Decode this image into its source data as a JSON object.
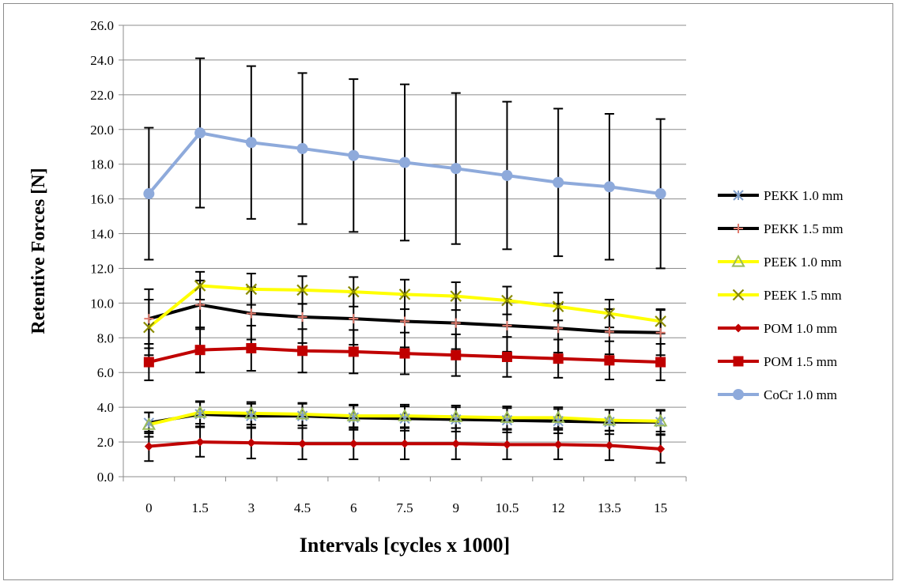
{
  "chart_data": {
    "type": "line",
    "title": "",
    "xlabel": "Intervals [cycles x 1000]",
    "ylabel": "Retentive Forces [N]",
    "categories": [
      "0",
      "1.5",
      "3",
      "4.5",
      "6",
      "7.5",
      "9",
      "10.5",
      "12",
      "13.5",
      "15"
    ],
    "yticks": [
      "0.0",
      "2.0",
      "4.0",
      "6.0",
      "8.0",
      "10.0",
      "12.0",
      "14.0",
      "16.0",
      "18.0",
      "20.0",
      "22.0",
      "24.0",
      "26.0"
    ],
    "ylim": [
      0,
      26
    ],
    "grid": "horizontal",
    "legend_position": "right",
    "series": [
      {
        "name": "PEKK 1.0 mm",
        "line_color": "#000000",
        "marker": "asterisk",
        "marker_color": "#7f9ec9",
        "values": [
          3.1,
          3.6,
          3.5,
          3.5,
          3.4,
          3.35,
          3.3,
          3.25,
          3.2,
          3.15,
          3.15
        ],
        "errors": [
          0.6,
          0.7,
          0.7,
          0.7,
          0.7,
          0.7,
          0.7,
          0.7,
          0.7,
          0.7,
          0.7
        ]
      },
      {
        "name": "PEKK 1.5 mm",
        "line_color": "#000000",
        "marker": "plus",
        "marker_color": "#e07b6e",
        "values": [
          9.1,
          9.9,
          9.4,
          9.2,
          9.1,
          8.95,
          8.85,
          8.7,
          8.55,
          8.35,
          8.3
        ],
        "errors": [
          1.7,
          1.4,
          1.5,
          1.5,
          1.5,
          1.5,
          1.5,
          1.5,
          1.4,
          1.3,
          1.3
        ]
      },
      {
        "name": "PEEK 1.0 mm",
        "line_color": "#ffff00",
        "marker": "triangle",
        "marker_color": "#9bbb59",
        "values": [
          3.0,
          3.7,
          3.65,
          3.6,
          3.5,
          3.5,
          3.45,
          3.4,
          3.4,
          3.25,
          3.2
        ],
        "errors": [
          0.7,
          0.65,
          0.65,
          0.65,
          0.65,
          0.65,
          0.65,
          0.65,
          0.6,
          0.6,
          0.6
        ]
      },
      {
        "name": "PEEK 1.5 mm",
        "line_color": "#ffff00",
        "marker": "x",
        "marker_color": "#8a8a00",
        "values": [
          8.6,
          11.0,
          10.8,
          10.75,
          10.65,
          10.5,
          10.4,
          10.15,
          9.8,
          9.4,
          8.95
        ],
        "errors": [
          1.6,
          0.8,
          0.9,
          0.8,
          0.85,
          0.85,
          0.8,
          0.8,
          0.8,
          0.8,
          0.7
        ]
      },
      {
        "name": "POM 1.0 mm",
        "line_color": "#c00000",
        "marker": "diamond",
        "marker_color": "#c00000",
        "values": [
          1.75,
          2.0,
          1.95,
          1.9,
          1.9,
          1.9,
          1.9,
          1.85,
          1.85,
          1.8,
          1.6
        ],
        "errors": [
          0.85,
          0.85,
          0.9,
          0.9,
          0.9,
          0.9,
          0.9,
          0.85,
          0.85,
          0.85,
          0.8
        ]
      },
      {
        "name": "POM 1.5 mm",
        "line_color": "#c00000",
        "marker": "square",
        "marker_color": "#c00000",
        "values": [
          6.6,
          7.3,
          7.4,
          7.25,
          7.2,
          7.1,
          7.0,
          6.9,
          6.8,
          6.7,
          6.6
        ],
        "errors": [
          1.05,
          1.3,
          1.3,
          1.25,
          1.25,
          1.2,
          1.2,
          1.15,
          1.1,
          1.1,
          1.05
        ]
      },
      {
        "name": "CoCr 1.0 mm",
        "line_color": "#8eaadb",
        "marker": "circle",
        "marker_color": "#8eaadb",
        "values": [
          16.3,
          19.8,
          19.25,
          18.9,
          18.5,
          18.1,
          17.75,
          17.35,
          16.95,
          16.7,
          16.3
        ],
        "errors": [
          3.8,
          4.3,
          4.4,
          4.35,
          4.4,
          4.5,
          4.35,
          4.25,
          4.25,
          4.2,
          4.3
        ]
      }
    ]
  }
}
